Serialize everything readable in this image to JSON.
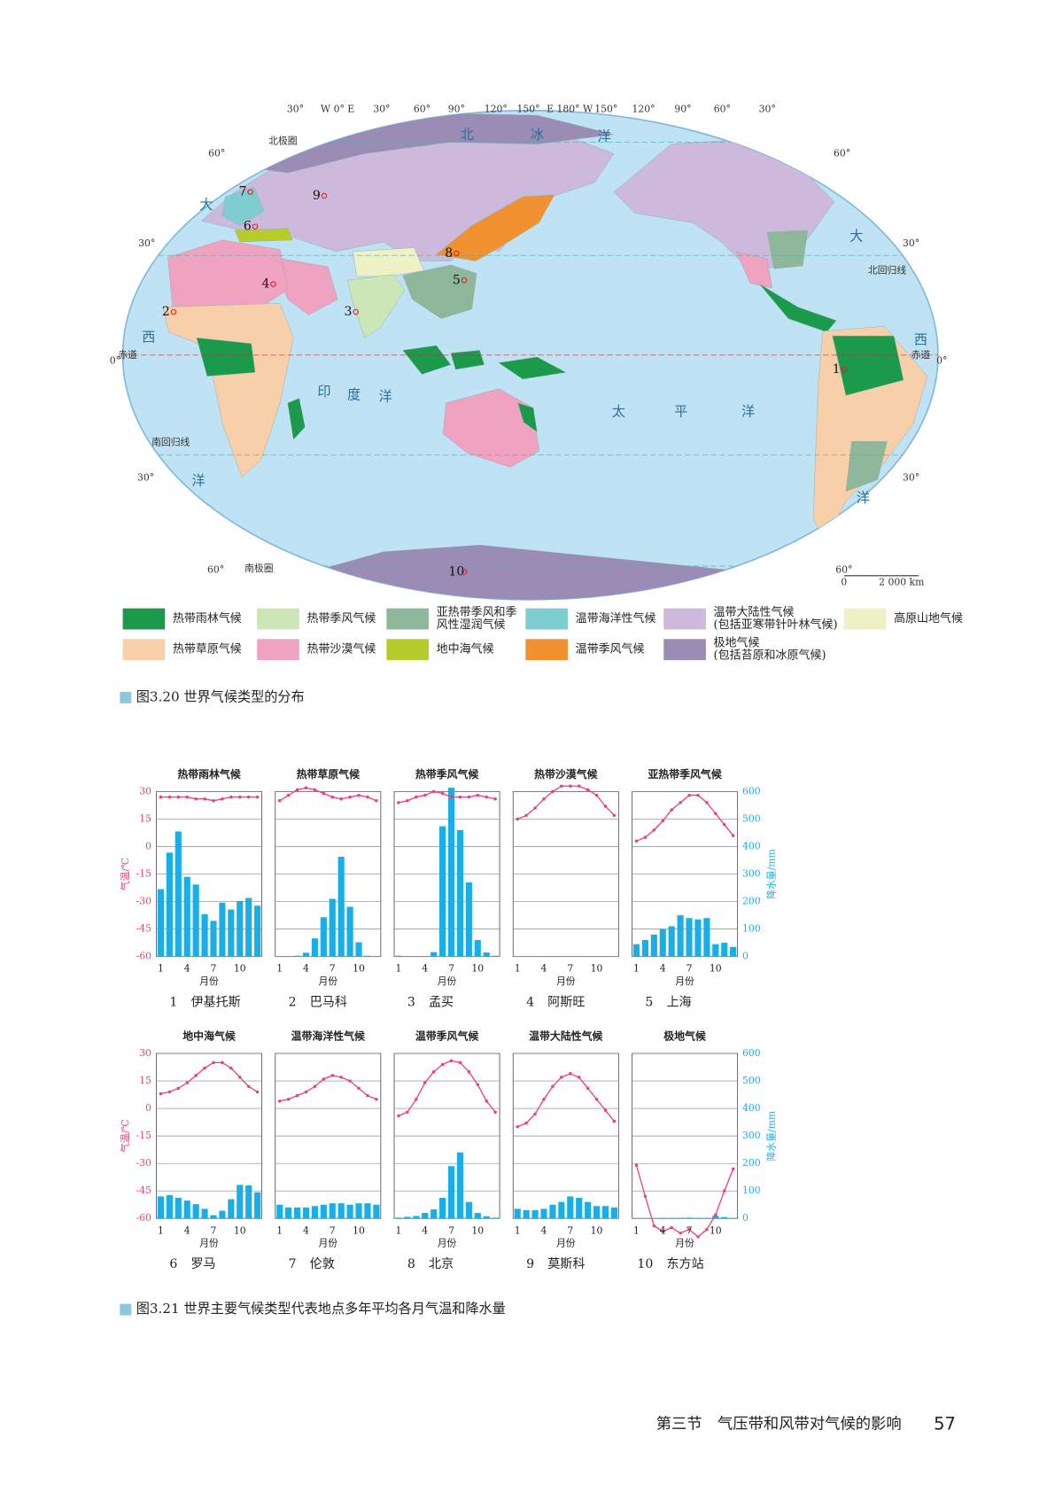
{
  "map": {
    "labels": [
      "30°",
      "W 0° E",
      "30°",
      "60°",
      "90°",
      "120°",
      "150°",
      "E 180° W",
      "150°",
      "120°",
      "90°",
      "60°",
      "30°",
      "60°",
      "30°",
      "0°",
      "30°",
      "60°",
      "60°",
      "30°",
      "0°",
      "30°",
      "60°",
      "北极圈",
      "北回归线",
      "赤道",
      "赤道",
      "南回归线",
      "南极圈",
      "北",
      "冰",
      "洋",
      "大",
      "西",
      "洋",
      "印",
      "度",
      "洋",
      "太",
      "平",
      "洋",
      "大",
      "西",
      "洋",
      "1",
      "2",
      "3",
      "4",
      "5",
      "6",
      "7",
      "8",
      "9",
      "10",
      "0",
      "2 000 km"
    ]
  },
  "legend": {
    "items": [
      {
        "label": [
          "热带雨林气候"
        ],
        "color": "#1a9a4a"
      },
      {
        "label": [
          "热带季风气候"
        ],
        "color": "#cde6b8"
      },
      {
        "label": [
          "亚热带季风和季",
          "风性湿润气候"
        ],
        "color": "#8fb89a"
      },
      {
        "label": [
          "温带海洋性气候"
        ],
        "color": "#7ecdd0"
      },
      {
        "label": [
          "温带大陆性气候",
          "(包括亚寒带针叶林气候)"
        ],
        "color": "#cdb9dc"
      },
      {
        "label": [
          "高原山地气候"
        ],
        "color": "#eef1c3"
      },
      {
        "label": [
          "热带草原气候"
        ],
        "color": "#f7cfa8"
      },
      {
        "label": [
          "热带沙漠气候"
        ],
        "color": "#f0a3c0"
      },
      {
        "label": [
          "地中海气候"
        ],
        "color": "#b5cc2a"
      },
      {
        "label": [
          "温带季风气候"
        ],
        "color": "#f0922f"
      },
      {
        "label": [
          "极地气候",
          "(包括苔原和冰原气候)"
        ],
        "color": "#9a8cb5"
      }
    ]
  },
  "figure_3_20": {
    "caption": "图3.20  世界气候类型的分布"
  },
  "climate_charts": {
    "temp_axis": {
      "label": "气温/℃",
      "ticks": [
        30,
        15,
        0,
        -15,
        -30,
        -45,
        -60
      ],
      "lim": [
        -60,
        30
      ]
    },
    "precip_axis": {
      "label": "降水量/mm",
      "ticks": [
        600,
        500,
        400,
        300,
        200,
        100,
        0
      ],
      "lim": [
        0,
        600
      ]
    },
    "x_ticks": [
      1,
      4,
      7,
      10
    ],
    "x_label": "月份",
    "temp_color": "#e8407a",
    "precip_color": "#19aee6",
    "charts": [
      {
        "title": "热带雨林气候",
        "number": 1,
        "station": "伊基托斯",
        "temperature": [
          27,
          27,
          27,
          27,
          26,
          26,
          25,
          26,
          27,
          27,
          27,
          27
        ],
        "precipitation": [
          245,
          378,
          455,
          290,
          262,
          154,
          130,
          196,
          171,
          202,
          213,
          185
        ]
      },
      {
        "title": "热带草原气候",
        "number": 2,
        "station": "巴马科",
        "temperature": [
          25,
          28,
          31,
          32,
          31,
          29,
          27,
          26,
          27,
          28,
          27,
          25
        ],
        "precipitation": [
          1,
          1,
          3,
          14,
          66,
          143,
          210,
          363,
          181,
          52,
          3,
          1
        ]
      },
      {
        "title": "热带季风气候",
        "number": 3,
        "station": "孟买",
        "temperature": [
          24,
          25,
          27,
          28,
          30,
          29,
          27,
          27,
          27,
          28,
          27,
          26
        ],
        "precipitation": [
          3,
          1,
          1,
          1,
          16,
          474,
          614,
          460,
          270,
          60,
          15,
          3
        ]
      },
      {
        "title": "热带沙漠气候",
        "number": 4,
        "station": "阿斯旺",
        "temperature": [
          15,
          17,
          21,
          26,
          30,
          33,
          33,
          33,
          31,
          28,
          22,
          17
        ],
        "precipitation": [
          0,
          0,
          0,
          1,
          1,
          0,
          0,
          0,
          0,
          1,
          0,
          0
        ]
      },
      {
        "title": "亚热带季风气候",
        "number": 5,
        "station": "上海",
        "temperature": [
          3,
          5,
          9,
          14,
          20,
          24,
          28,
          28,
          24,
          18,
          12,
          6
        ],
        "precipitation": [
          45,
          60,
          80,
          100,
          110,
          150,
          140,
          135,
          140,
          45,
          50,
          35
        ]
      },
      {
        "title": "地中海气候",
        "number": 6,
        "station": "罗马",
        "temperature": [
          8,
          9,
          11,
          14,
          18,
          22,
          25,
          25,
          22,
          17,
          12,
          9
        ],
        "precipitation": [
          80,
          85,
          75,
          65,
          52,
          35,
          12,
          28,
          70,
          122,
          120,
          95
        ]
      },
      {
        "title": "温带海洋性气候",
        "number": 7,
        "station": "伦敦",
        "temperature": [
          4,
          5,
          7,
          9,
          12,
          16,
          18,
          17,
          15,
          11,
          7,
          5
        ],
        "precipitation": [
          50,
          40,
          40,
          40,
          45,
          50,
          55,
          55,
          50,
          55,
          55,
          50
        ]
      },
      {
        "title": "温带季风气候",
        "number": 8,
        "station": "北京",
        "temperature": [
          -4,
          -2,
          5,
          14,
          20,
          24,
          26,
          25,
          20,
          13,
          4,
          -2
        ],
        "precipitation": [
          3,
          6,
          9,
          20,
          33,
          75,
          190,
          240,
          60,
          20,
          8,
          3
        ]
      },
      {
        "title": "温带大陆性气候",
        "number": 9,
        "station": "莫斯科",
        "temperature": [
          -10,
          -8,
          -3,
          5,
          12,
          17,
          19,
          17,
          11,
          5,
          -1,
          -7
        ],
        "precipitation": [
          35,
          30,
          30,
          35,
          50,
          60,
          80,
          75,
          60,
          45,
          45,
          40
        ]
      },
      {
        "title": "极地气候",
        "number": 10,
        "station": "东方站",
        "temperature": [
          -31,
          -48,
          -64,
          -67,
          -65,
          -68,
          -66,
          -70,
          -66,
          -58,
          -45,
          -33
        ],
        "precipitation": [
          1,
          1,
          1,
          2,
          2,
          2,
          3,
          2,
          2,
          10,
          5,
          2
        ]
      }
    ]
  },
  "figure_3_21": {
    "caption": "图3.21  世界主要气候类型代表地点多年平均各月气温和降水量"
  },
  "footer": {
    "section": "第三节　气压带和风带对气候的影响",
    "page": 57
  }
}
